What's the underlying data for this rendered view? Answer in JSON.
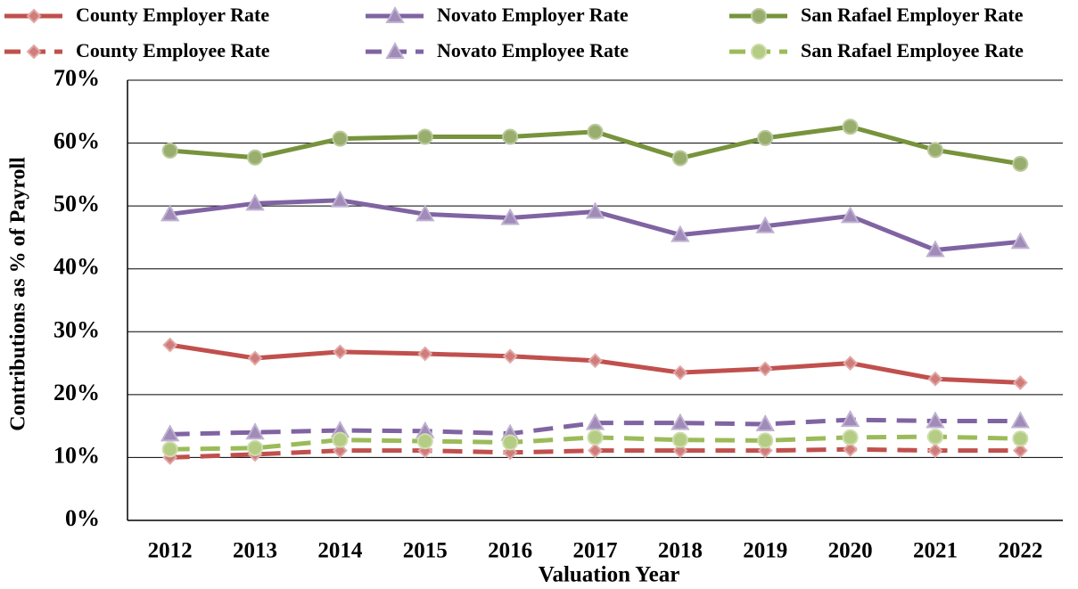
{
  "chart_data": {
    "type": "line",
    "x_label": "Valuation Year",
    "y_label": "Contributions as % of Payroll",
    "categories": [
      "2012",
      "2013",
      "2014",
      "2015",
      "2016",
      "2017",
      "2018",
      "2019",
      "2020",
      "2021",
      "2022"
    ],
    "ylim": [
      0,
      70
    ],
    "yticks": [
      {
        "value": 0,
        "label": "0%"
      },
      {
        "value": 10,
        "label": "10%"
      },
      {
        "value": 20,
        "label": "20%"
      },
      {
        "value": 30,
        "label": "30%"
      },
      {
        "value": 40,
        "label": "40%"
      },
      {
        "value": 50,
        "label": "50%"
      },
      {
        "value": 60,
        "label": "60%"
      },
      {
        "value": 70,
        "label": "70%"
      }
    ],
    "grid": true,
    "legend": "top",
    "series": [
      {
        "name": "County Employer Rate",
        "color": "#c0504d",
        "marker": "diamond",
        "dashed": false,
        "values": [
          27.9,
          25.8,
          26.8,
          26.5,
          26.1,
          25.4,
          23.5,
          24.1,
          25.0,
          22.5,
          21.9
        ]
      },
      {
        "name": "Novato Employer Rate",
        "color": "#8064a2",
        "marker": "triangle",
        "dashed": false,
        "values": [
          48.7,
          50.4,
          50.9,
          48.7,
          48.1,
          49.1,
          45.4,
          46.8,
          48.4,
          43.0,
          44.3
        ]
      },
      {
        "name": "San Rafael Employer Rate",
        "color": "#77933c",
        "marker": "circle",
        "dashed": false,
        "values": [
          58.8,
          57.7,
          60.7,
          61.0,
          61.0,
          61.8,
          57.6,
          60.8,
          62.6,
          58.9,
          56.7
        ]
      },
      {
        "name": "County Employee Rate",
        "color": "#c0504d",
        "marker": "diamond",
        "dashed": true,
        "values": [
          10.0,
          10.5,
          11.1,
          11.1,
          10.8,
          11.1,
          11.1,
          11.1,
          11.3,
          11.1,
          11.1
        ]
      },
      {
        "name": "Novato Employee Rate",
        "color": "#8064a2",
        "marker": "triangle",
        "dashed": true,
        "values": [
          13.7,
          14.0,
          14.3,
          14.2,
          13.8,
          15.5,
          15.5,
          15.3,
          16.0,
          15.8,
          15.8
        ]
      },
      {
        "name": "San Rafael Employee Rate",
        "color": "#9bbb59",
        "marker": "circle",
        "dashed": true,
        "values": [
          11.3,
          11.5,
          12.8,
          12.6,
          12.4,
          13.2,
          12.8,
          12.7,
          13.2,
          13.3,
          13.0
        ]
      }
    ]
  }
}
